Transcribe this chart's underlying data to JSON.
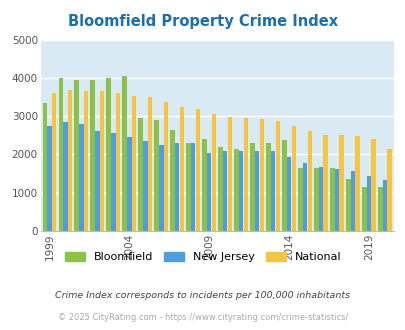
{
  "title": "Bloomfield Property Crime Index",
  "title_color": "#1a6faf",
  "years": [
    1999,
    2000,
    2001,
    2002,
    2003,
    2004,
    2005,
    2006,
    2007,
    2008,
    2009,
    2010,
    2011,
    2012,
    2013,
    2014,
    2015,
    2016,
    2017,
    2018,
    2019,
    2020
  ],
  "bloomfield": [
    3350,
    4000,
    3950,
    3950,
    4000,
    4050,
    2950,
    2900,
    2650,
    2300,
    2400,
    2200,
    2150,
    2300,
    2300,
    2370,
    1650,
    1650,
    1650,
    1350,
    1150,
    1150
  ],
  "new_jersey": [
    2750,
    2850,
    2800,
    2600,
    2550,
    2450,
    2350,
    2250,
    2300,
    2300,
    2050,
    2100,
    2100,
    2100,
    2080,
    1930,
    1770,
    1660,
    1620,
    1580,
    1440,
    1340
  ],
  "national": [
    3600,
    3680,
    3660,
    3660,
    3600,
    3530,
    3490,
    3380,
    3250,
    3200,
    3050,
    2970,
    2950,
    2930,
    2880,
    2730,
    2620,
    2500,
    2500,
    2470,
    2400,
    2130
  ],
  "bloomfield_color": "#8bc34a",
  "new_jersey_color": "#4d9de0",
  "national_color": "#f5c542",
  "plot_bg": "#daeaf5",
  "ylim": [
    0,
    5000
  ],
  "yticks": [
    0,
    1000,
    2000,
    3000,
    4000,
    5000
  ],
  "xtick_years": [
    1999,
    2004,
    2009,
    2014,
    2019
  ],
  "footnote1": "Crime Index corresponds to incidents per 100,000 inhabitants",
  "footnote2": "© 2025 CityRating.com - https://www.cityrating.com/crime-statistics/",
  "footnote1_color": "#444444",
  "footnote2_color": "#aaaaaa",
  "grid_color": "#ffffff",
  "grid_linewidth": 1.0
}
